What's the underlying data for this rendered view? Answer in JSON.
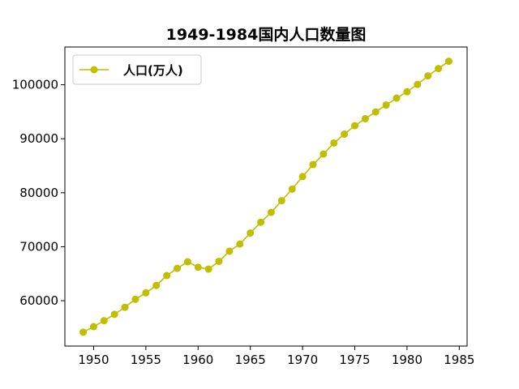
{
  "chart_data": {
    "type": "line",
    "title": "1949-1984国内人口数量图",
    "xlabel": "",
    "ylabel": "",
    "xlim": [
      1947.25,
      1985.75
    ],
    "ylim": [
      51600,
      107000
    ],
    "xticks": [
      1950,
      1955,
      1960,
      1965,
      1970,
      1975,
      1980,
      1985
    ],
    "yticks": [
      60000,
      70000,
      80000,
      90000,
      100000
    ],
    "grid": false,
    "legend_position": "upper-left",
    "series": [
      {
        "name": "人口(万人)",
        "color": "#bfbf00",
        "marker": "circle",
        "x": [
          1949,
          1950,
          1951,
          1952,
          1953,
          1954,
          1955,
          1956,
          1957,
          1958,
          1959,
          1960,
          1961,
          1962,
          1963,
          1964,
          1965,
          1966,
          1967,
          1968,
          1969,
          1970,
          1971,
          1972,
          1973,
          1974,
          1975,
          1976,
          1977,
          1978,
          1979,
          1980,
          1981,
          1982,
          1983,
          1984
        ],
        "y": [
          54167,
          55196,
          56300,
          57482,
          58796,
          60266,
          61465,
          62828,
          64653,
          65994,
          67207,
          66207,
          65859,
          67296,
          69172,
          70499,
          72538,
          74542,
          76368,
          78534,
          80671,
          82992,
          85229,
          87177,
          89211,
          90859,
          92420,
          93717,
          94974,
          96259,
          97542,
          98705,
          100072,
          101654,
          103008,
          104357
        ]
      }
    ]
  }
}
